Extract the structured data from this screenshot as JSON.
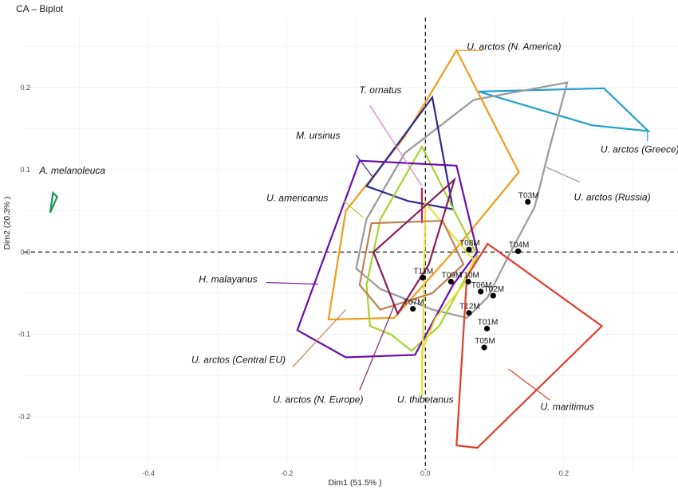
{
  "title": "CA – Biplot",
  "chart_data": {
    "type": "scatter",
    "title": "CA – Biplot",
    "xlabel": "Dim1 (51.5% )",
    "ylabel": "Dim2 (20.3% )",
    "xlim": [
      -0.58,
      0.365
    ],
    "ylim": [
      -0.265,
      0.285
    ],
    "grid": true,
    "x_ticks": [
      {
        "v": -0.4,
        "label": "-0.4"
      },
      {
        "v": -0.2,
        "label": "-0.2"
      },
      {
        "v": 0.0,
        "label": "0.0"
      },
      {
        "v": 0.2,
        "label": "0.2"
      }
    ],
    "y_ticks": [
      {
        "v": -0.2,
        "label": "-0.2"
      },
      {
        "v": -0.1,
        "label": "-0.1"
      },
      {
        "v": 0.0,
        "label": "0.0"
      },
      {
        "v": 0.1,
        "label": "0.1"
      },
      {
        "v": 0.2,
        "label": "0.2"
      }
    ],
    "points": [
      {
        "label": "T03M",
        "x": 0.148,
        "y": 0.061
      },
      {
        "label": "T04M",
        "x": 0.134,
        "y": 0.001
      },
      {
        "label": "T08M",
        "x": 0.063,
        "y": 0.003
      },
      {
        "label": "T11M",
        "x": -0.004,
        "y": -0.031
      },
      {
        "label": "T09M",
        "x": 0.037,
        "y": -0.036
      },
      {
        "label": "T10M",
        "x": 0.062,
        "y": -0.036
      },
      {
        "label": "T06M",
        "x": 0.08,
        "y": -0.048
      },
      {
        "label": "T02M",
        "x": 0.098,
        "y": -0.053
      },
      {
        "label": "T07M",
        "x": -0.018,
        "y": -0.069
      },
      {
        "label": "T12M",
        "x": 0.063,
        "y": -0.074
      },
      {
        "label": "T01M",
        "x": 0.089,
        "y": -0.093
      },
      {
        "label": "T05M",
        "x": 0.085,
        "y": -0.116
      }
    ],
    "groups": [
      {
        "name": "A. melanoleuca",
        "color": "#1a9850",
        "hull": [
          [
            -0.538,
            0.072
          ],
          [
            -0.532,
            0.067
          ],
          [
            -0.542,
            0.048
          ]
        ],
        "label_at": [
          -0.51,
          0.095
        ],
        "leader": []
      },
      {
        "name": "U. arctos (Greece)",
        "color": "#1f9fd0",
        "hull": [
          [
            0.077,
            0.195
          ],
          [
            0.258,
            0.199
          ],
          [
            0.322,
            0.147
          ],
          [
            0.241,
            0.154
          ],
          [
            0.077,
            0.195
          ]
        ],
        "label_at": [
          0.31,
          0.121
        ],
        "leader": [
          [
            0.321,
            0.147
          ],
          [
            0.321,
            0.135
          ]
        ]
      },
      {
        "name": "U. arctos (Russia)",
        "color": "#999999",
        "hull": [
          [
            0.205,
            0.206
          ],
          [
            0.178,
            0.122
          ],
          [
            0.158,
            0.055
          ],
          [
            0.12,
            -0.005
          ],
          [
            0.09,
            -0.055
          ],
          [
            0.06,
            -0.08
          ],
          [
            0.01,
            -0.07
          ],
          [
            -0.065,
            -0.045
          ],
          [
            -0.1,
            -0.02
          ],
          [
            -0.085,
            0.04
          ],
          [
            -0.03,
            0.12
          ],
          [
            0.07,
            0.185
          ],
          [
            0.205,
            0.206
          ]
        ],
        "label_at": [
          0.27,
          0.063
        ],
        "leader": [
          [
            0.175,
            0.103
          ],
          [
            0.223,
            0.085
          ]
        ]
      },
      {
        "name": "U. arctos (N. America)",
        "color": "#f09b1a",
        "hull": [
          [
            0.045,
            0.245
          ],
          [
            0.135,
            0.097
          ],
          [
            0.045,
            0.005
          ],
          [
            -0.045,
            -0.08
          ],
          [
            -0.14,
            -0.082
          ],
          [
            -0.115,
            0.05
          ],
          [
            -0.03,
            0.14
          ],
          [
            0.045,
            0.245
          ]
        ],
        "label_at": [
          0.128,
          0.246
        ],
        "leader": [
          [
            0.046,
            0.245
          ],
          [
            0.083,
            0.245
          ]
        ]
      },
      {
        "name": "T. ornatus",
        "color": "#e377c2",
        "hull": [],
        "label_at": [
          -0.065,
          0.193
        ],
        "leader": [
          [
            -0.08,
            0.178
          ],
          [
            -0.005,
            0.08
          ]
        ]
      },
      {
        "name": "M. ursinus",
        "color": "#2a2a8f",
        "hull": [
          [
            0.01,
            0.188
          ],
          [
            0.04,
            0.052
          ],
          [
            -0.025,
            0.062
          ],
          [
            -0.085,
            0.08
          ],
          [
            0.01,
            0.188
          ]
        ],
        "label_at": [
          -0.155,
          0.138
        ],
        "leader": [
          [
            -0.1,
            0.118
          ],
          [
            -0.075,
            0.09
          ]
        ]
      },
      {
        "name": "U. americanus",
        "color": "#a6d22e",
        "hull": [
          [
            -0.005,
            0.128
          ],
          [
            0.075,
            -0.005
          ],
          [
            0.02,
            -0.09
          ],
          [
            -0.02,
            -0.12
          ],
          [
            -0.05,
            -0.1
          ],
          [
            -0.08,
            -0.09
          ],
          [
            -0.085,
            -0.04
          ],
          [
            -0.065,
            0.04
          ],
          [
            -0.005,
            0.128
          ]
        ],
        "label_at": [
          -0.185,
          0.062
        ],
        "leader": [
          [
            -0.118,
            0.062
          ],
          [
            -0.09,
            0.042
          ]
        ]
      },
      {
        "name": "H. malayanus",
        "color": "#6a0dad",
        "hull": [
          [
            -0.095,
            0.111
          ],
          [
            0.045,
            0.105
          ],
          [
            0.075,
            0.0
          ],
          [
            0.04,
            -0.04
          ],
          [
            -0.015,
            -0.125
          ],
          [
            -0.115,
            -0.128
          ],
          [
            -0.185,
            -0.095
          ],
          [
            -0.095,
            0.111
          ]
        ],
        "label_at": [
          -0.285,
          -0.037
        ],
        "leader": [
          [
            -0.23,
            -0.037
          ],
          [
            -0.155,
            -0.039
          ]
        ]
      },
      {
        "name": "U. thibetanus",
        "color": "#e8e23a",
        "hull": [
          [
            0.0,
            0.06
          ],
          [
            0.07,
            -0.01
          ],
          [
            0.055,
            -0.04
          ],
          [
            0.015,
            -0.08
          ],
          [
            -0.005,
            -0.12
          ],
          [
            -0.005,
            -0.175
          ],
          [
            0.0,
            0.06
          ]
        ],
        "label_at": [
          0.0,
          -0.183
        ],
        "leader": []
      },
      {
        "name": "U. arctos (Central EU)",
        "color": "#c08050",
        "hull": [
          [
            -0.078,
            0.035
          ],
          [
            0.025,
            0.038
          ],
          [
            0.055,
            -0.015
          ],
          [
            0.01,
            -0.05
          ],
          [
            -0.065,
            -0.07
          ],
          [
            -0.095,
            -0.04
          ],
          [
            -0.078,
            0.035
          ]
        ],
        "label_at": [
          -0.27,
          -0.135
        ],
        "leader": [
          [
            -0.192,
            -0.14
          ],
          [
            -0.115,
            -0.07
          ]
        ]
      },
      {
        "name": "U. arctos (N. Europe)",
        "color": "#8b1a5e",
        "hull": [
          [
            0.042,
            0.088
          ],
          [
            0.005,
            -0.015
          ],
          [
            -0.04,
            -0.075
          ],
          [
            -0.075,
            0.0
          ],
          [
            0.042,
            0.088
          ]
        ],
        "label_at": [
          -0.155,
          -0.183
        ],
        "leader": [
          [
            -0.095,
            -0.168
          ],
          [
            -0.045,
            -0.065
          ]
        ]
      },
      {
        "name": "U. maritimus",
        "color": "#e03c2c",
        "hull": [
          [
            0.09,
            0.01
          ],
          [
            0.255,
            -0.09
          ],
          [
            0.075,
            -0.238
          ],
          [
            0.045,
            -0.235
          ],
          [
            0.06,
            -0.03
          ],
          [
            0.09,
            0.01
          ]
        ],
        "label_at": [
          0.205,
          -0.192
        ],
        "leader": [
          [
            0.12,
            -0.142
          ],
          [
            0.18,
            -0.18
          ]
        ]
      }
    ]
  }
}
